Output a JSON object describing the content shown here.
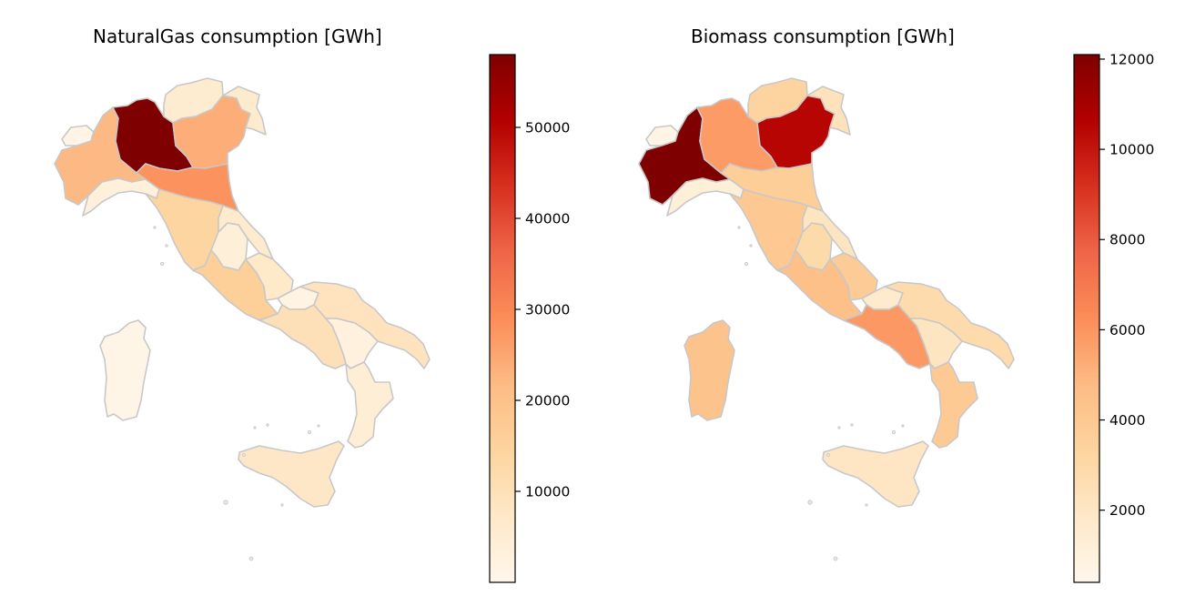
{
  "maps": [
    {
      "title": "NaturalGas consumption [GWh]",
      "colormap": "OrRd",
      "colorbar": {
        "min": 0,
        "max": 58000,
        "ticks": [
          "10000",
          "20000",
          "30000",
          "40000",
          "50000"
        ],
        "tick_values": [
          10000,
          20000,
          30000,
          40000,
          50000
        ]
      },
      "regions": {
        "aosta": 1500,
        "piedmont": 22000,
        "lombardy": 58000,
        "trentino": 5500,
        "veneto": 24000,
        "friuli": 6000,
        "liguria": 3500,
        "emilia": 28000,
        "tuscany": 14000,
        "umbria": 4000,
        "marche": 6500,
        "lazio": 16000,
        "abruzzo": 7000,
        "molise": 2000,
        "campania": 10000,
        "apulia": 9000,
        "basilicata": 3000,
        "calabria": 4500,
        "sicily": 7500,
        "sardinia": 1200
      }
    },
    {
      "title": "Biomass consumption [GWh]",
      "colormap": "OrRd",
      "colorbar": {
        "min": 400,
        "max": 12100,
        "ticks": [
          "2000",
          "4000",
          "6000",
          "8000",
          "10000",
          "12000"
        ],
        "tick_values": [
          2000,
          4000,
          6000,
          8000,
          10000,
          12000
        ]
      },
      "regions": {
        "aosta": 700,
        "piedmont": 12100,
        "lombardy": 5800,
        "trentino": 3300,
        "veneto": 10500,
        "friuli": 2300,
        "liguria": 1200,
        "emilia": 3700,
        "tuscany": 4000,
        "umbria": 2900,
        "marche": 2100,
        "lazio": 4500,
        "abruzzo": 3800,
        "molise": 1600,
        "campania": 5900,
        "apulia": 2800,
        "basilicata": 2100,
        "calabria": 3900,
        "sicily": 2000,
        "sardinia": 4300
      }
    }
  ],
  "colors": {
    "scale": [
      "#fff7ec",
      "#fee8c8",
      "#fdd49e",
      "#fdbb84",
      "#fc8d59",
      "#ef6548",
      "#d7301f",
      "#b30000",
      "#7f0000"
    ],
    "border": "#c8c8c8"
  }
}
